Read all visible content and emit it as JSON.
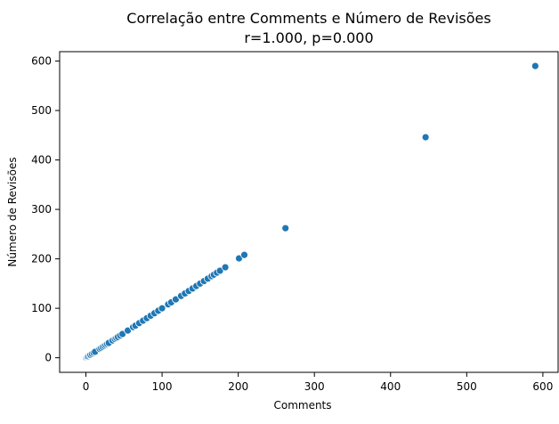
{
  "chart_data": {
    "type": "scatter",
    "title": "Correlação entre Comments e Número de Revisões",
    "subtitle": "r=1.000, p=0.000",
    "xlabel": "Comments",
    "ylabel": "Número de Revisões",
    "xlim": [
      -34.5,
      620
    ],
    "ylim": [
      -29.5,
      619
    ],
    "xticks": [
      0,
      100,
      200,
      300,
      400,
      500,
      600
    ],
    "yticks": [
      0,
      100,
      200,
      300,
      400,
      500,
      600
    ],
    "grid": false,
    "legend": "none",
    "point_color": "#1f77b4",
    "points": [
      [
        0,
        0
      ],
      [
        1,
        1
      ],
      [
        2,
        2
      ],
      [
        3,
        3
      ],
      [
        5,
        5
      ],
      [
        6,
        6
      ],
      [
        8,
        8
      ],
      [
        10,
        10
      ],
      [
        12,
        12
      ],
      [
        18,
        18
      ],
      [
        20,
        20
      ],
      [
        22,
        22
      ],
      [
        24,
        24
      ],
      [
        26,
        26
      ],
      [
        28,
        28
      ],
      [
        30,
        30
      ],
      [
        35,
        35
      ],
      [
        38,
        38
      ],
      [
        40,
        40
      ],
      [
        42,
        42
      ],
      [
        45,
        45
      ],
      [
        48,
        48
      ],
      [
        55,
        55
      ],
      [
        62,
        62
      ],
      [
        65,
        65
      ],
      [
        70,
        70
      ],
      [
        75,
        75
      ],
      [
        80,
        80
      ],
      [
        85,
        85
      ],
      [
        90,
        90
      ],
      [
        95,
        95
      ],
      [
        100,
        100
      ],
      [
        108,
        108
      ],
      [
        112,
        112
      ],
      [
        118,
        118
      ],
      [
        125,
        125
      ],
      [
        130,
        130
      ],
      [
        135,
        135
      ],
      [
        140,
        140
      ],
      [
        145,
        145
      ],
      [
        150,
        150
      ],
      [
        155,
        155
      ],
      [
        160,
        160
      ],
      [
        165,
        165
      ],
      [
        168,
        168
      ],
      [
        172,
        172
      ],
      [
        176,
        176
      ],
      [
        183,
        183
      ],
      [
        201,
        201
      ],
      [
        208,
        208
      ],
      [
        262,
        262
      ],
      [
        446,
        446
      ],
      [
        590,
        590
      ]
    ]
  }
}
